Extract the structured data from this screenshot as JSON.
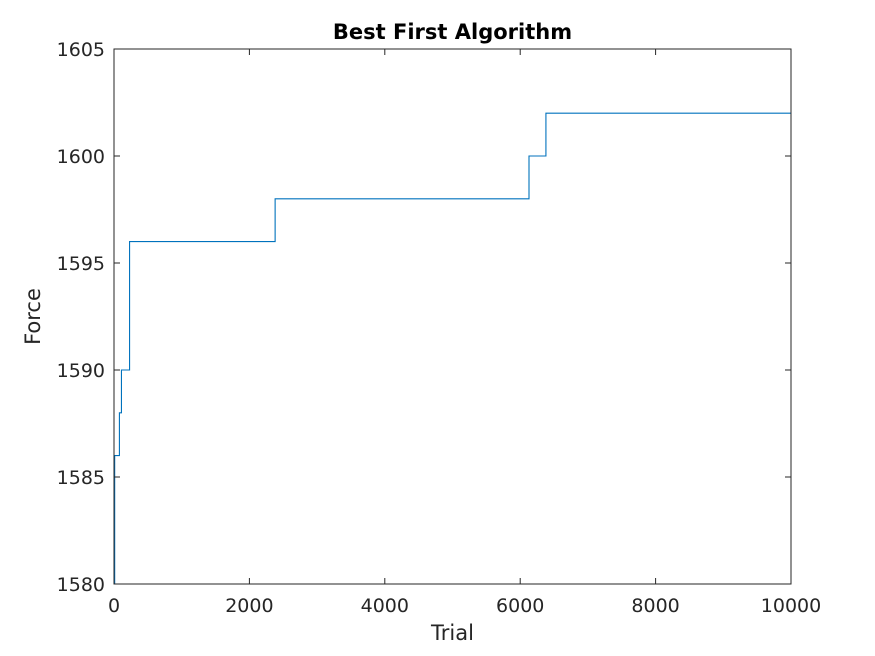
{
  "chart_data": {
    "type": "line",
    "title": "Best First Algorithm",
    "xlabel": "Trial",
    "ylabel": "Force",
    "xlim": [
      0,
      10000
    ],
    "ylim": [
      1580,
      1605
    ],
    "xticks": [
      0,
      2000,
      4000,
      6000,
      8000,
      10000
    ],
    "yticks": [
      1580,
      1585,
      1590,
      1595,
      1600,
      1605
    ],
    "xtick_labels": [
      "0",
      "2000",
      "4000",
      "6000",
      "8000",
      "10000"
    ],
    "ytick_labels": [
      "1580",
      "1585",
      "1590",
      "1595",
      "1600",
      "1605"
    ],
    "grid": false,
    "line_color": "#0072BD",
    "series": [
      {
        "step": "post",
        "x": [
          0,
          10,
          80,
          110,
          230,
          2380,
          6130,
          6380,
          10000
        ],
        "y": [
          1580,
          1586,
          1588,
          1590,
          1596,
          1598,
          1600,
          1602,
          1602
        ]
      }
    ]
  }
}
